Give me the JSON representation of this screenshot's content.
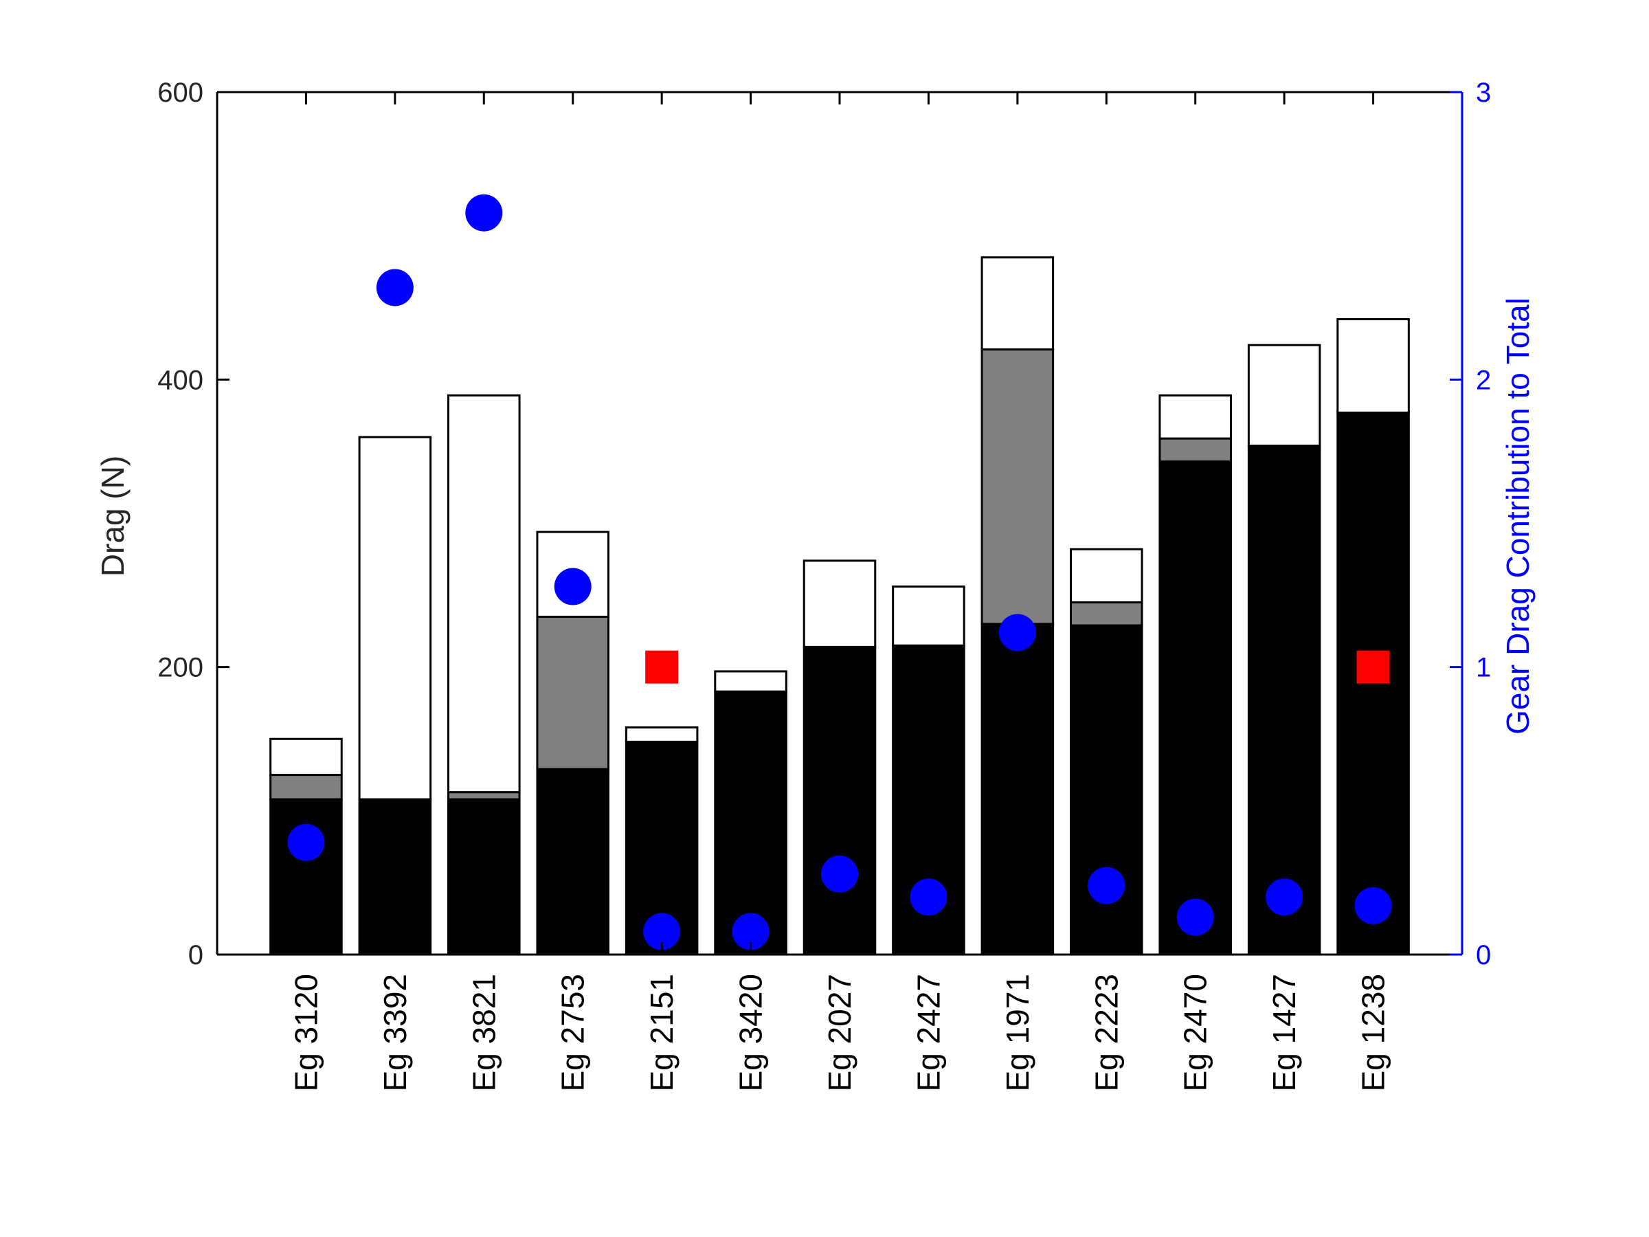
{
  "chart_data": {
    "type": "bar",
    "stacked": true,
    "categories": [
      "Eg 3120",
      "Eg 3392",
      "Eg 3821",
      "Eg 2753",
      "Eg 2151",
      "Eg 3420",
      "Eg 2027",
      "Eg 2427",
      "Eg 1971",
      "Eg 2223",
      "Eg 2470",
      "Eg 1427",
      "Eg 1238"
    ],
    "ylabel": "Drag (N)",
    "y2label": "Gear Drag Contribution to Total",
    "ylim": [
      0,
      600
    ],
    "y2lim": [
      0,
      3
    ],
    "yticks": [
      "0",
      "200",
      "400",
      "600"
    ],
    "y2ticks": [
      "0",
      "1",
      "2",
      "3"
    ],
    "grid": false,
    "series": [
      {
        "color": "#000000",
        "values": [
          108,
          108,
          108,
          129,
          148,
          183,
          214,
          215,
          230,
          229,
          343,
          354,
          377
        ]
      },
      {
        "color": "#808080",
        "values": [
          17,
          0,
          5,
          106,
          0,
          0,
          0,
          0,
          191,
          16,
          16,
          0,
          0
        ]
      },
      {
        "color": "#ffffff",
        "values": [
          25,
          252,
          276,
          59,
          10,
          14,
          60,
          41,
          64,
          37,
          30,
          70,
          65
        ]
      }
    ],
    "y2_series": [
      {
        "marker": "circle",
        "color": "#0000ff",
        "values": [
          0.39,
          2.32,
          2.58,
          1.28,
          0.08,
          0.08,
          0.28,
          0.2,
          1.12,
          0.24,
          0.13,
          0.2,
          0.17
        ]
      },
      {
        "marker": "square",
        "color": "#ff0000",
        "values": [
          null,
          null,
          null,
          null,
          1.0,
          null,
          null,
          null,
          null,
          null,
          null,
          null,
          1.0
        ]
      }
    ],
    "colors": {
      "axis": "#000000",
      "y2_axis": "#0000ff",
      "label": "#262626"
    }
  }
}
